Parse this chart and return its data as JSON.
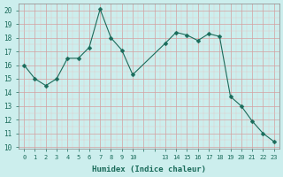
{
  "x": [
    0,
    1,
    2,
    3,
    4,
    5,
    6,
    7,
    8,
    9,
    10,
    13,
    14,
    15,
    16,
    17,
    18,
    19,
    20,
    21,
    22,
    23
  ],
  "y": [
    16.0,
    15.0,
    14.5,
    15.0,
    16.5,
    16.5,
    17.3,
    20.1,
    18.0,
    17.1,
    15.3,
    17.6,
    18.4,
    18.2,
    17.8,
    18.3,
    18.1,
    13.7,
    13.0,
    11.9,
    11.0,
    10.4
  ],
  "xticks_shown": [
    0,
    1,
    2,
    3,
    4,
    5,
    6,
    7,
    8,
    9,
    10,
    13,
    14,
    15,
    16,
    17,
    18,
    19,
    20,
    21,
    22,
    23
  ],
  "xtick_labels": [
    "0",
    "1",
    "2",
    "3",
    "4",
    "5",
    "6",
    "7",
    "8",
    "9",
    "10",
    "13",
    "14",
    "15",
    "16",
    "17",
    "18",
    "19",
    "20",
    "21",
    "22",
    "23"
  ],
  "yticks": [
    10,
    11,
    12,
    13,
    14,
    15,
    16,
    17,
    18,
    19,
    20
  ],
  "ylim": [
    9.9,
    20.5
  ],
  "xlim": [
    -0.5,
    23.5
  ],
  "xlabel": "Humidex (Indice chaleur)",
  "line_color": "#1a6b5a",
  "marker": "D",
  "marker_size": 2.5,
  "bg_color": "#cceeed",
  "grid_minor_color": "#e8c8c8",
  "grid_major_color": "#d4a0a0",
  "figsize": [
    3.2,
    2.0
  ],
  "dpi": 100
}
